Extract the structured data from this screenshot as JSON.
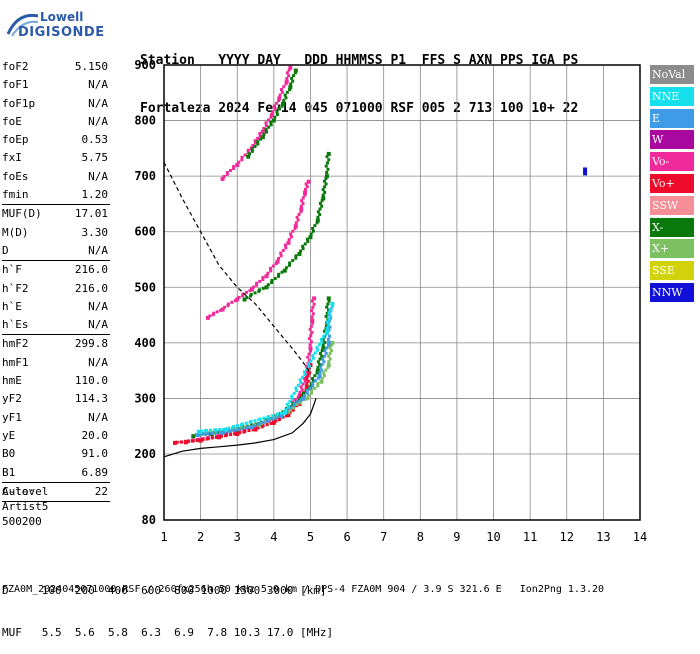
{
  "logo": {
    "line1": "Lowell",
    "line2": "DIGISONDE"
  },
  "header": {
    "line1": "Station   YYYY DAY   DDD HHMMSS P1  FFS S AXN PPS IGA PS",
    "line2": "Fortaleza 2024 Fev14 045 071000 RSF 005 2 713 100 10+ 22"
  },
  "params": [
    {
      "name": "foF2",
      "value": "5.150"
    },
    {
      "name": "foF1",
      "value": "N/A"
    },
    {
      "name": "foF1p",
      "value": "N/A"
    },
    {
      "name": "foE",
      "value": "N/A"
    },
    {
      "name": "foEp",
      "value": "0.53"
    },
    {
      "name": "fxI",
      "value": "5.75"
    },
    {
      "name": "foEs",
      "value": "N/A"
    },
    {
      "name": "fmin",
      "value": "1.20"
    },
    {
      "sep": true
    },
    {
      "name": "MUF(D)",
      "value": "17.01"
    },
    {
      "name": "M(D)",
      "value": "3.30"
    },
    {
      "name": "D",
      "value": "N/A"
    },
    {
      "sep": true
    },
    {
      "name": "h`F",
      "value": "216.0"
    },
    {
      "name": "h`F2",
      "value": "216.0"
    },
    {
      "name": "h`E",
      "value": "N/A"
    },
    {
      "name": "h`Es",
      "value": "N/A"
    },
    {
      "sep": true
    },
    {
      "name": "hmF2",
      "value": "299.8"
    },
    {
      "name": "hmF1",
      "value": "N/A"
    },
    {
      "name": "hmE",
      "value": "110.0"
    },
    {
      "name": "yF2",
      "value": "114.3"
    },
    {
      "name": "yF1",
      "value": "N/A"
    },
    {
      "name": "yE",
      "value": "20.0"
    },
    {
      "name": "B0",
      "value": "91.0"
    },
    {
      "name": "B1",
      "value": "6.89"
    },
    {
      "sep": true
    },
    {
      "name": "C-level",
      "value": "22"
    },
    {
      "sep": true
    }
  ],
  "auto": {
    "line1": "Auto:",
    "line2": "Artist5",
    "line3": "500200"
  },
  "legend": [
    {
      "label": "NoVal",
      "color": "#8c8c8c"
    },
    {
      "label": "NNE",
      "color": "#17e0ee"
    },
    {
      "label": "E",
      "color": "#3d9be8"
    },
    {
      "label": "W",
      "color": "#a8089e"
    },
    {
      "label": "Vo-",
      "color": "#f02a9a"
    },
    {
      "label": "Vo+",
      "color": "#ee0a2a"
    },
    {
      "label": "SSW",
      "color": "#f58e96"
    },
    {
      "label": "X-",
      "color": "#0a780a"
    },
    {
      "label": "X+",
      "color": "#7cc062"
    },
    {
      "label": "SSE",
      "color": "#d2d20c"
    },
    {
      "label": "NNW",
      "color": "#1010d8"
    }
  ],
  "bottom": {
    "d_row": "D     100  200  400  600  800 1000 1500 3000 [km]",
    "muf_row": "MUF   5.5  5.6  5.8  6.3  6.9  7.8 10.3 17.0 [MHz]"
  },
  "footer": "FZA0M_2024045071000.RSF / 260fx256h 50 kHz 5.0 km / DPS-4 FZA0M 904 / 3.9 S 321.6 E   Ion2Png 1.3.20",
  "chart_data": {
    "type": "scatter",
    "title": "",
    "xlabel": "",
    "ylabel": "",
    "xlim": [
      1,
      14
    ],
    "ylim": [
      80,
      900
    ],
    "xticks": [
      "1",
      "2",
      "3",
      "4",
      "5",
      "6",
      "7",
      "8",
      "9",
      "10",
      "11",
      "12",
      "13",
      "14"
    ],
    "yticks": [
      "80",
      "200",
      "300",
      "400",
      "500",
      "600",
      "700",
      "800",
      "900"
    ],
    "grid": true,
    "series": [
      {
        "name": "Vo-",
        "color": "#f02a9a",
        "points": [
          [
            1.6,
            222
          ],
          [
            2.0,
            226
          ],
          [
            2.5,
            232
          ],
          [
            3.0,
            240
          ],
          [
            3.5,
            248
          ],
          [
            4.0,
            262
          ],
          [
            4.4,
            280
          ],
          [
            4.7,
            305
          ],
          [
            4.9,
            340
          ],
          [
            5.0,
            390
          ],
          [
            5.05,
            440
          ],
          [
            5.1,
            480
          ]
        ]
      },
      {
        "name": "Vo+",
        "color": "#ee0a2a",
        "points": [
          [
            1.3,
            220
          ],
          [
            1.6,
            221
          ],
          [
            2.0,
            224
          ],
          [
            2.5,
            230
          ],
          [
            3.0,
            236
          ],
          [
            3.5,
            244
          ],
          [
            4.0,
            256
          ],
          [
            4.4,
            270
          ],
          [
            4.7,
            290
          ],
          [
            4.9,
            320
          ],
          [
            5.0,
            360
          ]
        ]
      },
      {
        "name": "X-",
        "color": "#0a780a",
        "points": [
          [
            1.8,
            232
          ],
          [
            2.3,
            236
          ],
          [
            3.0,
            244
          ],
          [
            3.6,
            254
          ],
          [
            4.2,
            272
          ],
          [
            4.7,
            296
          ],
          [
            5.0,
            320
          ],
          [
            5.2,
            350
          ],
          [
            5.35,
            390
          ],
          [
            5.45,
            430
          ],
          [
            5.5,
            480
          ]
        ]
      },
      {
        "name": "X+",
        "color": "#7cc062",
        "points": [
          [
            2.0,
            236
          ],
          [
            2.8,
            242
          ],
          [
            3.6,
            252
          ],
          [
            4.4,
            276
          ],
          [
            4.9,
            300
          ],
          [
            5.3,
            330
          ],
          [
            5.5,
            360
          ],
          [
            5.6,
            400
          ]
        ]
      },
      {
        "name": "E",
        "color": "#3d9be8",
        "points": [
          [
            1.9,
            234
          ],
          [
            2.6,
            238
          ],
          [
            3.4,
            248
          ],
          [
            4.2,
            268
          ],
          [
            4.8,
            300
          ],
          [
            5.25,
            340
          ],
          [
            5.5,
            400
          ],
          [
            5.55,
            460
          ]
        ]
      },
      {
        "name": "NNE",
        "color": "#17e0ee",
        "points": [
          [
            1.95,
            240
          ],
          [
            2.7,
            244
          ],
          [
            4.3,
            274
          ],
          [
            5.45,
            420
          ],
          [
            5.6,
            470
          ]
        ]
      },
      {
        "name": "Vo- 2nd",
        "color": "#f02a9a",
        "points": [
          [
            2.2,
            445
          ],
          [
            2.6,
            460
          ],
          [
            3.0,
            478
          ],
          [
            3.4,
            496
          ],
          [
            3.8,
            520
          ],
          [
            4.1,
            546
          ],
          [
            4.4,
            580
          ],
          [
            4.6,
            610
          ],
          [
            4.75,
            640
          ],
          [
            4.85,
            670
          ],
          [
            4.95,
            690
          ]
        ]
      },
      {
        "name": "X- 2nd",
        "color": "#0a780a",
        "points": [
          [
            3.2,
            478
          ],
          [
            3.8,
            500
          ],
          [
            4.3,
            530
          ],
          [
            4.7,
            560
          ],
          [
            5.0,
            590
          ],
          [
            5.2,
            620
          ],
          [
            5.35,
            660
          ],
          [
            5.45,
            700
          ],
          [
            5.5,
            740
          ]
        ]
      },
      {
        "name": "Vo- 3rd",
        "color": "#f02a9a",
        "points": [
          [
            2.6,
            695
          ],
          [
            3.0,
            720
          ],
          [
            3.4,
            750
          ],
          [
            3.7,
            780
          ],
          [
            3.95,
            810
          ],
          [
            4.15,
            840
          ],
          [
            4.35,
            870
          ],
          [
            4.45,
            895
          ]
        ]
      },
      {
        "name": "X- 3rd",
        "color": "#0a780a",
        "points": [
          [
            3.3,
            735
          ],
          [
            3.7,
            770
          ],
          [
            4.0,
            800
          ],
          [
            4.25,
            830
          ],
          [
            4.45,
            860
          ],
          [
            4.6,
            890
          ]
        ]
      },
      {
        "name": "NNW",
        "color": "#1010d8",
        "points": [
          [
            12.5,
            705
          ],
          [
            12.5,
            712
          ]
        ]
      }
    ],
    "profile_line": [
      [
        1.0,
        195
      ],
      [
        1.5,
        205
      ],
      [
        2.0,
        210
      ],
      [
        2.5,
        213
      ],
      [
        3.0,
        216
      ],
      [
        3.5,
        220
      ],
      [
        4.0,
        226
      ],
      [
        4.5,
        238
      ],
      [
        4.8,
        255
      ],
      [
        5.0,
        272
      ],
      [
        5.1,
        290
      ],
      [
        5.15,
        300
      ]
    ],
    "dashed_line": [
      [
        1.0,
        725
      ],
      [
        1.5,
        660
      ],
      [
        2.0,
        600
      ],
      [
        2.5,
        540
      ],
      [
        3.0,
        500
      ],
      [
        3.5,
        470
      ],
      [
        4.0,
        430
      ],
      [
        4.5,
        390
      ],
      [
        4.8,
        365
      ],
      [
        5.0,
        345
      ]
    ]
  }
}
